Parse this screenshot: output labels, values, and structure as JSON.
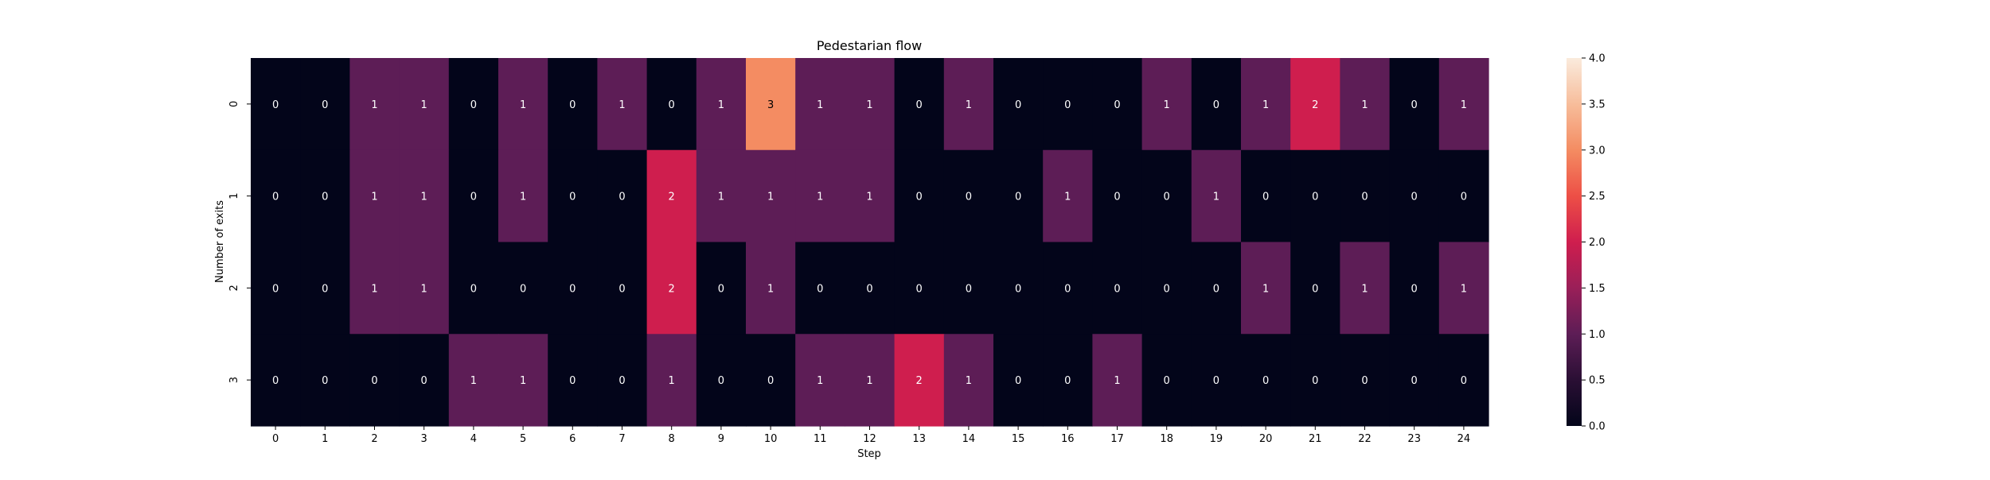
{
  "chart_data": {
    "type": "heatmap",
    "title": "Pedestarian flow",
    "xlabel": "Step",
    "ylabel": "Number of exits",
    "x_categories": [
      "0",
      "1",
      "2",
      "3",
      "4",
      "5",
      "6",
      "7",
      "8",
      "9",
      "10",
      "11",
      "12",
      "13",
      "14",
      "15",
      "16",
      "17",
      "18",
      "19",
      "20",
      "21",
      "22",
      "23",
      "24"
    ],
    "y_categories": [
      "0",
      "1",
      "2",
      "3"
    ],
    "values": [
      [
        0,
        0,
        1,
        1,
        0,
        1,
        0,
        1,
        0,
        1,
        3,
        1,
        1,
        0,
        1,
        0,
        0,
        0,
        1,
        0,
        1,
        2,
        1,
        0,
        1
      ],
      [
        0,
        0,
        1,
        1,
        0,
        1,
        0,
        0,
        2,
        1,
        1,
        1,
        1,
        0,
        0,
        0,
        1,
        0,
        0,
        1,
        0,
        0,
        0,
        0,
        0
      ],
      [
        0,
        0,
        1,
        1,
        0,
        0,
        0,
        0,
        2,
        0,
        1,
        0,
        0,
        0,
        0,
        0,
        0,
        0,
        0,
        0,
        1,
        0,
        1,
        0,
        1
      ],
      [
        0,
        0,
        0,
        0,
        1,
        1,
        0,
        0,
        1,
        0,
        0,
        1,
        1,
        2,
        1,
        0,
        0,
        1,
        0,
        0,
        0,
        0,
        0,
        0,
        0
      ]
    ],
    "annotate": true,
    "colorbar": {
      "min": 0,
      "max": 4,
      "ticks": [
        "0.0",
        "0.5",
        "1.0",
        "1.5",
        "2.0",
        "2.5",
        "3.0",
        "3.5",
        "4.0"
      ]
    },
    "colors": {
      "0": "#03051a",
      "1": "#5d1d56",
      "2": "#cf1e4e",
      "3": "#f48c62",
      "4": "#faebdd"
    },
    "grid": false
  }
}
